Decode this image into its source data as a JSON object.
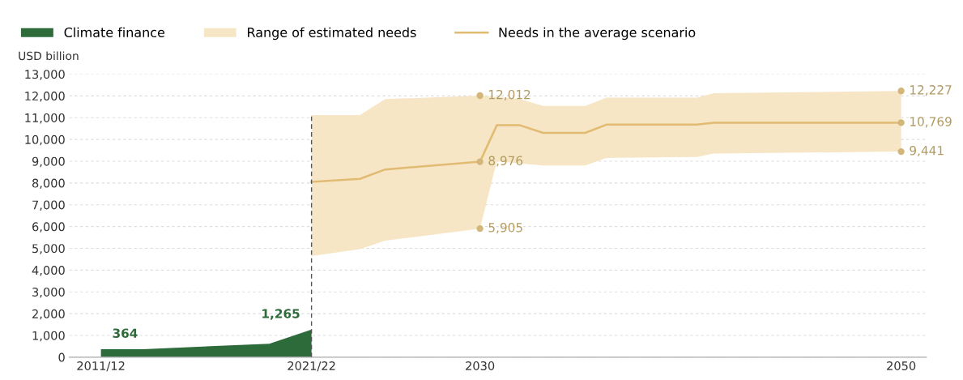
{
  "chart_data": {
    "type": "area",
    "ylabel": "USD billion",
    "xlim": [
      2010.5,
      2051.2
    ],
    "xticks": [
      {
        "value": 2012,
        "label": "2011/12"
      },
      {
        "value": 2022,
        "label": "2021/22"
      },
      2030,
      2050
    ],
    "ylim": [
      0,
      13000
    ],
    "yticks": [
      {
        "value": 0,
        "label": "0"
      },
      {
        "value": 1000,
        "label": "1,000"
      },
      {
        "value": 2000,
        "label": "2,000"
      },
      {
        "value": 3000,
        "label": "3,000"
      },
      {
        "value": 4000,
        "label": "4,000"
      },
      {
        "value": 5000,
        "label": "5,000"
      },
      {
        "value": 6000,
        "label": "6,000"
      },
      {
        "value": 7000,
        "label": "7,000"
      },
      {
        "value": 8000,
        "label": "8,000"
      },
      {
        "value": 9000,
        "label": "9,000"
      },
      {
        "value": 10000,
        "label": "10,000"
      },
      {
        "value": 11000,
        "label": "11,000"
      },
      {
        "value": 12000,
        "label": "12,000"
      },
      {
        "value": 13000,
        "label": "13,000"
      }
    ],
    "grid": "y",
    "legend": "top left",
    "series": [
      {
        "name": "Climate finance",
        "color": "#2e6b3a",
        "x": [
          2012,
          2014,
          2020,
          2022
        ],
        "values": [
          364,
          370,
          620,
          1265
        ]
      },
      {
        "name": "Range of estimated needs",
        "type": "area",
        "color": "#f6e6c6"
      },
      {
        "name": "Needs in the average scenario",
        "type": "line",
        "color": "#e2bb72",
        "lower": [
          4650,
          4960,
          5350,
          5905,
          9000,
          8900,
          8800,
          8800,
          9150,
          9190,
          9350,
          9441
        ],
        "upper": [
          11120,
          11120,
          11850,
          12012,
          11950,
          11850,
          11540,
          11540,
          11920,
          11920,
          12120,
          12227
        ],
        "x": [
          2022,
          2024.3,
          2025.5,
          2030,
          2030.8,
          2031.9,
          2033,
          2035,
          2036,
          2040.3,
          2041.1,
          2050
        ],
        "values": [
          8050,
          8190,
          8620,
          8976,
          10650,
          10650,
          10300,
          10300,
          10680,
          10680,
          10770,
          10769
        ]
      }
    ],
    "ref_lines": [
      {
        "axis": "x",
        "value": 2022,
        "color": "#555555",
        "line_style": "dashed"
      }
    ],
    "annotations": [
      {
        "text": "364",
        "x": 2012,
        "y": 364
      },
      {
        "text": "1,265",
        "x": 2022,
        "y": 1265
      },
      {
        "text": "12,012",
        "x": 2030,
        "y": 12012
      },
      {
        "text": "8,976",
        "x": 2030,
        "y": 8976
      },
      {
        "text": "5,905",
        "x": 2030,
        "y": 5905
      },
      {
        "text": "12,227",
        "x": 2050,
        "y": 12227
      },
      {
        "text": "10,769",
        "x": 2050,
        "y": 10769
      },
      {
        "text": "9,441",
        "x": 2050,
        "y": 9441
      }
    ]
  }
}
